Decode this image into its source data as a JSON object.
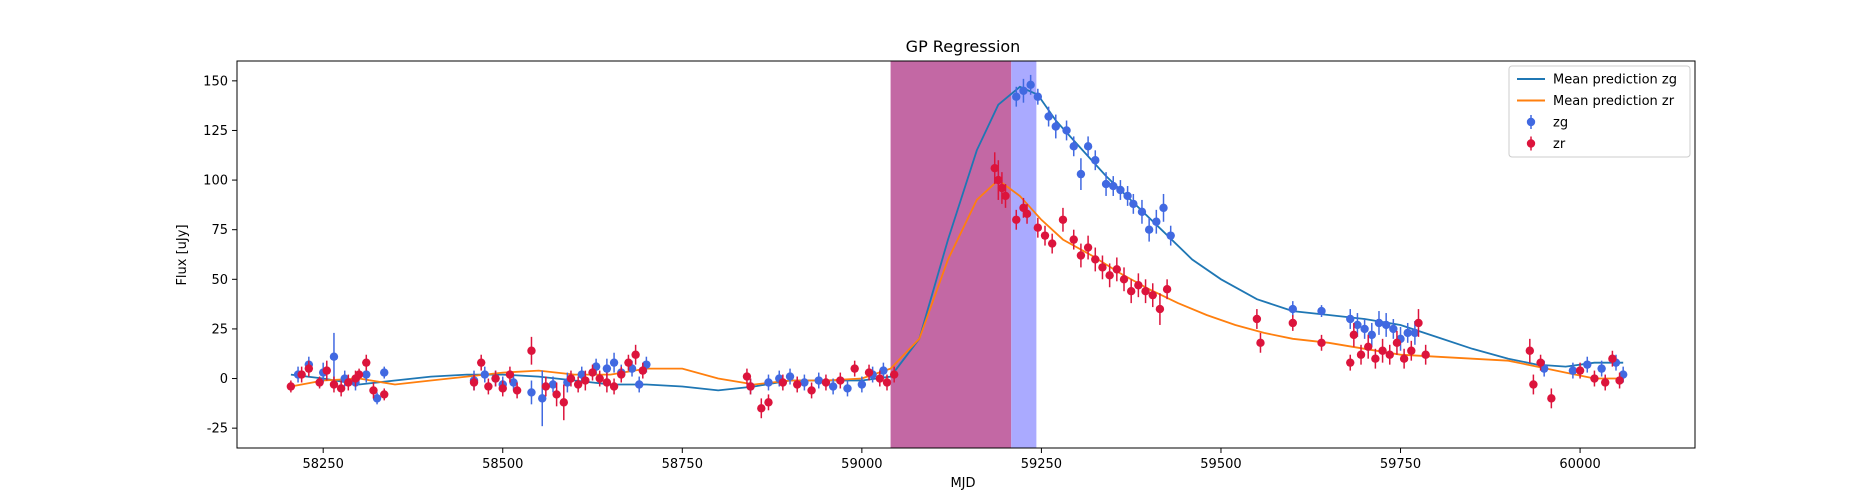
{
  "chart_data": {
    "type": "scatter",
    "title": "GP Regression",
    "xlabel": "MJD",
    "ylabel": "Flux [uJy]",
    "xlim": [
      58130,
      60160
    ],
    "ylim": [
      -35,
      160
    ],
    "xticks": [
      58250,
      58500,
      58750,
      59000,
      59250,
      59500,
      59750,
      60000
    ],
    "yticks": [
      -25,
      0,
      25,
      50,
      75,
      100,
      125,
      150
    ],
    "legend_position": "top-right",
    "grid": false,
    "spans": [
      {
        "x0": 59040,
        "x1": 59208,
        "color": "#c0609f",
        "opacity": 0.95
      },
      {
        "x0": 59208,
        "x1": 59243,
        "color": "#aaaaff",
        "opacity": 1.0
      }
    ],
    "lines": [
      {
        "name": "Mean prediction zg",
        "color": "#1f77b4",
        "points": [
          [
            58205,
            2
          ],
          [
            58250,
            0
          ],
          [
            58300,
            -3
          ],
          [
            58350,
            -1
          ],
          [
            58400,
            1
          ],
          [
            58450,
            2
          ],
          [
            58500,
            2
          ],
          [
            58550,
            1
          ],
          [
            58600,
            -1
          ],
          [
            58650,
            -3
          ],
          [
            58700,
            -3
          ],
          [
            58750,
            -4
          ],
          [
            58800,
            -6
          ],
          [
            58850,
            -4
          ],
          [
            58900,
            -1
          ],
          [
            58950,
            -1
          ],
          [
            59000,
            -1
          ],
          [
            59040,
            1
          ],
          [
            59080,
            20
          ],
          [
            59120,
            70
          ],
          [
            59160,
            115
          ],
          [
            59190,
            138
          ],
          [
            59220,
            147
          ],
          [
            59245,
            143
          ],
          [
            59270,
            130
          ],
          [
            59300,
            118
          ],
          [
            59340,
            102
          ],
          [
            59380,
            88
          ],
          [
            59420,
            74
          ],
          [
            59460,
            60
          ],
          [
            59500,
            50
          ],
          [
            59550,
            40
          ],
          [
            59600,
            34
          ],
          [
            59650,
            32
          ],
          [
            59700,
            30
          ],
          [
            59750,
            27
          ],
          [
            59800,
            21
          ],
          [
            59850,
            15
          ],
          [
            59900,
            10
          ],
          [
            59940,
            7
          ],
          [
            59980,
            6
          ],
          [
            60020,
            8
          ],
          [
            60060,
            8
          ]
        ]
      },
      {
        "name": "Mean prediction zr",
        "color": "#ff7f0e",
        "points": [
          [
            58205,
            -4
          ],
          [
            58250,
            -1
          ],
          [
            58300,
            0
          ],
          [
            58350,
            -3
          ],
          [
            58400,
            -1
          ],
          [
            58450,
            1
          ],
          [
            58500,
            3
          ],
          [
            58550,
            4
          ],
          [
            58600,
            2
          ],
          [
            58650,
            2
          ],
          [
            58700,
            5
          ],
          [
            58750,
            5
          ],
          [
            58800,
            0
          ],
          [
            58850,
            -3
          ],
          [
            58900,
            -1
          ],
          [
            58950,
            -1
          ],
          [
            59000,
            0
          ],
          [
            59040,
            5
          ],
          [
            59080,
            20
          ],
          [
            59120,
            60
          ],
          [
            59160,
            90
          ],
          [
            59190,
            100
          ],
          [
            59220,
            92
          ],
          [
            59250,
            80
          ],
          [
            59280,
            70
          ],
          [
            59320,
            62
          ],
          [
            59360,
            53
          ],
          [
            59400,
            45
          ],
          [
            59440,
            38
          ],
          [
            59480,
            32
          ],
          [
            59520,
            27
          ],
          [
            59560,
            23
          ],
          [
            59600,
            20
          ],
          [
            59650,
            18
          ],
          [
            59700,
            15
          ],
          [
            59750,
            12
          ],
          [
            59800,
            11
          ],
          [
            59850,
            10
          ],
          [
            59900,
            9
          ],
          [
            59940,
            6
          ],
          [
            59980,
            3
          ],
          [
            60020,
            0
          ],
          [
            60060,
            0
          ]
        ]
      }
    ],
    "series": [
      {
        "name": "zg",
        "color": "#4169e1",
        "points": [
          [
            58215,
            2,
            4
          ],
          [
            58230,
            7,
            4
          ],
          [
            58250,
            3,
            5
          ],
          [
            58265,
            11,
            12
          ],
          [
            58280,
            0,
            4
          ],
          [
            58295,
            -2,
            4
          ],
          [
            58310,
            2,
            4
          ],
          [
            58325,
            -10,
            3
          ],
          [
            58335,
            3,
            3
          ],
          [
            58460,
            -1,
            5
          ],
          [
            58475,
            2,
            4
          ],
          [
            58490,
            0,
            4
          ],
          [
            58500,
            -3,
            4
          ],
          [
            58515,
            -2,
            4
          ],
          [
            58540,
            -7,
            6
          ],
          [
            58555,
            -10,
            14
          ],
          [
            58570,
            -3,
            4
          ],
          [
            58590,
            -2,
            5
          ],
          [
            58610,
            2,
            4
          ],
          [
            58630,
            6,
            4
          ],
          [
            58645,
            5,
            5
          ],
          [
            58655,
            8,
            5
          ],
          [
            58665,
            3,
            4
          ],
          [
            58680,
            5,
            4
          ],
          [
            58690,
            -3,
            4
          ],
          [
            58700,
            7,
            4
          ],
          [
            58845,
            -4,
            4
          ],
          [
            58870,
            -2,
            4
          ],
          [
            58885,
            0,
            4
          ],
          [
            58900,
            1,
            4
          ],
          [
            58920,
            -2,
            4
          ],
          [
            58940,
            -1,
            4
          ],
          [
            58960,
            -4,
            4
          ],
          [
            58980,
            -5,
            4
          ],
          [
            59000,
            -3,
            4
          ],
          [
            59015,
            2,
            4
          ],
          [
            59030,
            4,
            4
          ],
          [
            59215,
            142,
            5
          ],
          [
            59225,
            145,
            6
          ],
          [
            59235,
            148,
            5
          ],
          [
            59245,
            142,
            4
          ],
          [
            59260,
            132,
            5
          ],
          [
            59270,
            127,
            6
          ],
          [
            59285,
            125,
            5
          ],
          [
            59295,
            117,
            5
          ],
          [
            59305,
            103,
            8
          ],
          [
            59315,
            117,
            5
          ],
          [
            59325,
            110,
            5
          ],
          [
            59340,
            98,
            6
          ],
          [
            59350,
            97,
            5
          ],
          [
            59360,
            95,
            5
          ],
          [
            59370,
            92,
            5
          ],
          [
            59378,
            88,
            5
          ],
          [
            59390,
            84,
            6
          ],
          [
            59400,
            75,
            6
          ],
          [
            59410,
            79,
            6
          ],
          [
            59420,
            86,
            7
          ],
          [
            59430,
            72,
            5
          ],
          [
            59600,
            35,
            4
          ],
          [
            59640,
            34,
            3
          ],
          [
            59680,
            30,
            5
          ],
          [
            59690,
            27,
            6
          ],
          [
            59700,
            25,
            5
          ],
          [
            59710,
            22,
            6
          ],
          [
            59720,
            28,
            6
          ],
          [
            59730,
            27,
            6
          ],
          [
            59740,
            25,
            5
          ],
          [
            59750,
            20,
            6
          ],
          [
            59760,
            23,
            5
          ],
          [
            59770,
            23,
            6
          ],
          [
            59950,
            5,
            4
          ],
          [
            59990,
            4,
            4
          ],
          [
            60010,
            7,
            4
          ],
          [
            60030,
            5,
            4
          ],
          [
            60050,
            8,
            4
          ],
          [
            60060,
            2,
            4
          ]
        ]
      },
      {
        "name": "zr",
        "color": "#dc143c",
        "points": [
          [
            58205,
            -4,
            3
          ],
          [
            58220,
            2,
            4
          ],
          [
            58230,
            5,
            4
          ],
          [
            58245,
            -2,
            3
          ],
          [
            58255,
            4,
            5
          ],
          [
            58265,
            -3,
            4
          ],
          [
            58275,
            -5,
            4
          ],
          [
            58285,
            -2,
            4
          ],
          [
            58295,
            0,
            4
          ],
          [
            58300,
            2,
            3
          ],
          [
            58310,
            8,
            4
          ],
          [
            58320,
            -6,
            4
          ],
          [
            58335,
            -8,
            3
          ],
          [
            58460,
            -2,
            4
          ],
          [
            58470,
            8,
            4
          ],
          [
            58480,
            -4,
            4
          ],
          [
            58490,
            0,
            4
          ],
          [
            58500,
            -5,
            4
          ],
          [
            58510,
            2,
            4
          ],
          [
            58520,
            -6,
            4
          ],
          [
            58540,
            14,
            7
          ],
          [
            58560,
            -4,
            5
          ],
          [
            58575,
            -8,
            6
          ],
          [
            58585,
            -12,
            9
          ],
          [
            58595,
            0,
            4
          ],
          [
            58605,
            -3,
            4
          ],
          [
            58615,
            -1,
            5
          ],
          [
            58625,
            3,
            4
          ],
          [
            58635,
            0,
            4
          ],
          [
            58645,
            -2,
            5
          ],
          [
            58655,
            -4,
            4
          ],
          [
            58665,
            2,
            4
          ],
          [
            58675,
            8,
            4
          ],
          [
            58685,
            12,
            5
          ],
          [
            58695,
            4,
            4
          ],
          [
            58840,
            1,
            4
          ],
          [
            58845,
            -4,
            4
          ],
          [
            58860,
            -15,
            5
          ],
          [
            58870,
            -12,
            4
          ],
          [
            58890,
            -2,
            4
          ],
          [
            58910,
            -3,
            4
          ],
          [
            58930,
            -6,
            4
          ],
          [
            58950,
            -2,
            4
          ],
          [
            58970,
            -1,
            4
          ],
          [
            58990,
            5,
            4
          ],
          [
            59010,
            3,
            4
          ],
          [
            59025,
            0,
            4
          ],
          [
            59035,
            -2,
            4
          ],
          [
            59045,
            2,
            4
          ],
          [
            59185,
            106,
            8
          ],
          [
            59190,
            100,
            10
          ],
          [
            59195,
            96,
            8
          ],
          [
            59200,
            92,
            6
          ],
          [
            59215,
            80,
            5
          ],
          [
            59225,
            86,
            5
          ],
          [
            59230,
            83,
            5
          ],
          [
            59245,
            76,
            5
          ],
          [
            59255,
            72,
            5
          ],
          [
            59265,
            68,
            5
          ],
          [
            59280,
            80,
            6
          ],
          [
            59295,
            70,
            5
          ],
          [
            59305,
            62,
            6
          ],
          [
            59315,
            66,
            6
          ],
          [
            59325,
            60,
            6
          ],
          [
            59335,
            56,
            6
          ],
          [
            59345,
            52,
            6
          ],
          [
            59355,
            55,
            6
          ],
          [
            59365,
            50,
            6
          ],
          [
            59375,
            44,
            6
          ],
          [
            59385,
            47,
            6
          ],
          [
            59395,
            44,
            6
          ],
          [
            59405,
            42,
            6
          ],
          [
            59415,
            35,
            8
          ],
          [
            59425,
            45,
            5
          ],
          [
            59550,
            30,
            5
          ],
          [
            59555,
            18,
            5
          ],
          [
            59600,
            28,
            4
          ],
          [
            59640,
            18,
            4
          ],
          [
            59680,
            8,
            4
          ],
          [
            59685,
            22,
            6
          ],
          [
            59695,
            12,
            5
          ],
          [
            59705,
            16,
            6
          ],
          [
            59715,
            10,
            5
          ],
          [
            59725,
            14,
            6
          ],
          [
            59735,
            12,
            5
          ],
          [
            59745,
            18,
            6
          ],
          [
            59755,
            10,
            5
          ],
          [
            59765,
            14,
            5
          ],
          [
            59775,
            28,
            7
          ],
          [
            59785,
            12,
            5
          ],
          [
            59930,
            14,
            6
          ],
          [
            59935,
            -3,
            5
          ],
          [
            59945,
            8,
            4
          ],
          [
            59960,
            -10,
            5
          ],
          [
            60000,
            4,
            4
          ],
          [
            60020,
            0,
            4
          ],
          [
            60035,
            -2,
            4
          ],
          [
            60045,
            10,
            4
          ],
          [
            60055,
            -1,
            4
          ]
        ]
      }
    ]
  }
}
